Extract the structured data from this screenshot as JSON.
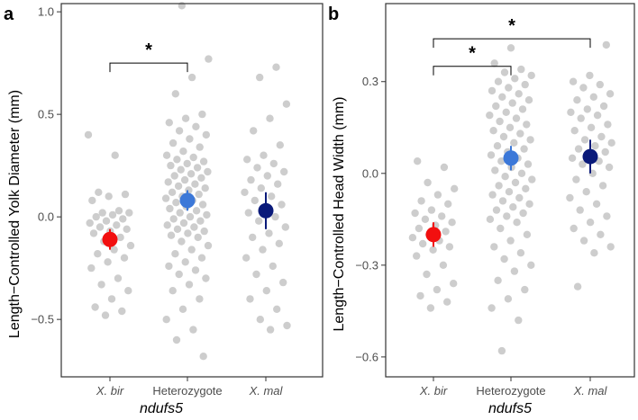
{
  "chart_data": [
    {
      "type": "scatter",
      "panel_label": "a",
      "ylabel": "Length−Controlled Yolk Diameter (mm)",
      "xlabel": "ndufs5",
      "ylim": [
        -0.78,
        1.04
      ],
      "yticks": [
        1.0,
        0.5,
        0.0,
        -0.5
      ],
      "ytick_labels": [
        "1.0",
        "0.5",
        "0.0",
        "−0.5"
      ],
      "categories": [
        "X. bir",
        "Heterozygote",
        "X. mal"
      ],
      "category_italic": [
        true,
        false,
        true
      ],
      "point_color": "#c8c8c8",
      "summary": [
        {
          "category": "X. bir",
          "mean": -0.11,
          "lower": -0.16,
          "upper": -0.06,
          "color": "#f20f0f"
        },
        {
          "category": "Heterozygote",
          "mean": 0.08,
          "lower": 0.03,
          "upper": 0.13,
          "color": "#3c78d8"
        },
        {
          "category": "X. mal",
          "mean": 0.03,
          "lower": -0.06,
          "upper": 0.12,
          "color": "#0a1a7a"
        }
      ],
      "significance": [
        {
          "from": "X. bir",
          "to": "Heterozygote",
          "label": "*",
          "y": 0.75
        }
      ],
      "points": [
        {
          "category": "X. bir",
          "values": [
            0.4,
            0.3,
            0.12,
            0.11,
            0.1,
            0.08,
            0.03,
            0.02,
            0.02,
            0.01,
            0.0,
            -0.01,
            -0.02,
            -0.03,
            -0.04,
            -0.05,
            -0.06,
            -0.07,
            -0.08,
            -0.1,
            -0.12,
            -0.14,
            -0.16,
            -0.18,
            -0.2,
            -0.22,
            -0.25,
            -0.3,
            -0.33,
            -0.36,
            -0.4,
            -0.44,
            -0.46,
            -0.48
          ]
        },
        {
          "category": "Heterozygote",
          "values": [
            1.03,
            0.77,
            0.68,
            0.6,
            0.5,
            0.48,
            0.46,
            0.44,
            0.42,
            0.4,
            0.38,
            0.36,
            0.34,
            0.32,
            0.3,
            0.29,
            0.28,
            0.27,
            0.26,
            0.25,
            0.24,
            0.23,
            0.22,
            0.21,
            0.2,
            0.19,
            0.18,
            0.17,
            0.16,
            0.15,
            0.14,
            0.13,
            0.12,
            0.11,
            0.1,
            0.09,
            0.08,
            0.07,
            0.06,
            0.05,
            0.04,
            0.03,
            0.02,
            0.01,
            0.0,
            -0.01,
            -0.02,
            -0.03,
            -0.04,
            -0.05,
            -0.06,
            -0.07,
            -0.08,
            -0.09,
            -0.1,
            -0.12,
            -0.14,
            -0.16,
            -0.18,
            -0.2,
            -0.22,
            -0.24,
            -0.26,
            -0.28,
            -0.3,
            -0.33,
            -0.36,
            -0.4,
            -0.45,
            -0.5,
            -0.55,
            -0.6,
            -0.68
          ]
        },
        {
          "category": "X. mal",
          "values": [
            0.73,
            0.68,
            0.55,
            0.48,
            0.42,
            0.35,
            0.3,
            0.28,
            0.26,
            0.24,
            0.22,
            0.2,
            0.18,
            0.16,
            0.14,
            0.12,
            0.1,
            0.08,
            0.06,
            0.04,
            0.02,
            0.0,
            -0.02,
            -0.05,
            -0.08,
            -0.1,
            -0.13,
            -0.16,
            -0.2,
            -0.24,
            -0.28,
            -0.32,
            -0.36,
            -0.4,
            -0.45,
            -0.5,
            -0.53,
            -0.55
          ]
        }
      ]
    },
    {
      "type": "scatter",
      "panel_label": "b",
      "ylabel": "Length−Controlled Head Width (mm)",
      "xlabel": "ndufs5",
      "ylim": [
        -0.665,
        0.555
      ],
      "yticks": [
        0.3,
        0.0,
        -0.3,
        -0.6
      ],
      "ytick_labels": [
        "0.3",
        "0.0",
        "−0.3",
        "−0.6"
      ],
      "categories": [
        "X. bir",
        "Heterozygote",
        "X. mal"
      ],
      "category_italic": [
        true,
        false,
        true
      ],
      "point_color": "#c8c8c8",
      "summary": [
        {
          "category": "X. bir",
          "mean": -0.2,
          "lower": -0.24,
          "upper": -0.16,
          "color": "#f20f0f"
        },
        {
          "category": "Heterozygote",
          "mean": 0.05,
          "lower": 0.01,
          "upper": 0.09,
          "color": "#3c78d8"
        },
        {
          "category": "X. mal",
          "mean": 0.055,
          "lower": 0.0,
          "upper": 0.11,
          "color": "#0a1a7a"
        }
      ],
      "significance": [
        {
          "from": "X. bir",
          "to": "Heterozygote",
          "label": "*",
          "y": 0.35
        },
        {
          "from": "X. bir",
          "to": "X. mal",
          "label": "*",
          "y": 0.44
        }
      ],
      "points": [
        {
          "category": "X. bir",
          "values": [
            0.04,
            0.02,
            -0.03,
            -0.05,
            -0.07,
            -0.09,
            -0.1,
            -0.12,
            -0.13,
            -0.14,
            -0.15,
            -0.16,
            -0.17,
            -0.18,
            -0.19,
            -0.2,
            -0.21,
            -0.22,
            -0.23,
            -0.24,
            -0.25,
            -0.27,
            -0.3,
            -0.33,
            -0.36,
            -0.38,
            -0.4,
            -0.42,
            -0.44
          ]
        },
        {
          "category": "Heterozygote",
          "values": [
            0.41,
            0.36,
            0.34,
            0.33,
            0.32,
            0.31,
            0.3,
            0.29,
            0.28,
            0.27,
            0.26,
            0.25,
            0.24,
            0.23,
            0.22,
            0.21,
            0.2,
            0.19,
            0.18,
            0.17,
            0.16,
            0.15,
            0.14,
            0.13,
            0.12,
            0.11,
            0.1,
            0.09,
            0.08,
            0.07,
            0.06,
            0.05,
            0.04,
            0.03,
            0.02,
            0.01,
            0.0,
            -0.01,
            -0.02,
            -0.03,
            -0.04,
            -0.05,
            -0.06,
            -0.07,
            -0.08,
            -0.09,
            -0.1,
            -0.11,
            -0.12,
            -0.13,
            -0.14,
            -0.15,
            -0.16,
            -0.18,
            -0.2,
            -0.22,
            -0.24,
            -0.26,
            -0.28,
            -0.3,
            -0.32,
            -0.35,
            -0.38,
            -0.41,
            -0.44,
            -0.48,
            -0.58
          ]
        },
        {
          "category": "X. mal",
          "values": [
            0.42,
            0.32,
            0.3,
            0.29,
            0.28,
            0.26,
            0.25,
            0.24,
            0.22,
            0.21,
            0.2,
            0.19,
            0.18,
            0.16,
            0.15,
            0.14,
            0.12,
            0.11,
            0.1,
            0.09,
            0.08,
            0.07,
            0.06,
            0.05,
            0.04,
            0.03,
            0.02,
            0.0,
            -0.02,
            -0.04,
            -0.06,
            -0.08,
            -0.1,
            -0.12,
            -0.14,
            -0.16,
            -0.18,
            -0.2,
            -0.22,
            -0.24,
            -0.26,
            -0.37
          ]
        }
      ]
    }
  ]
}
